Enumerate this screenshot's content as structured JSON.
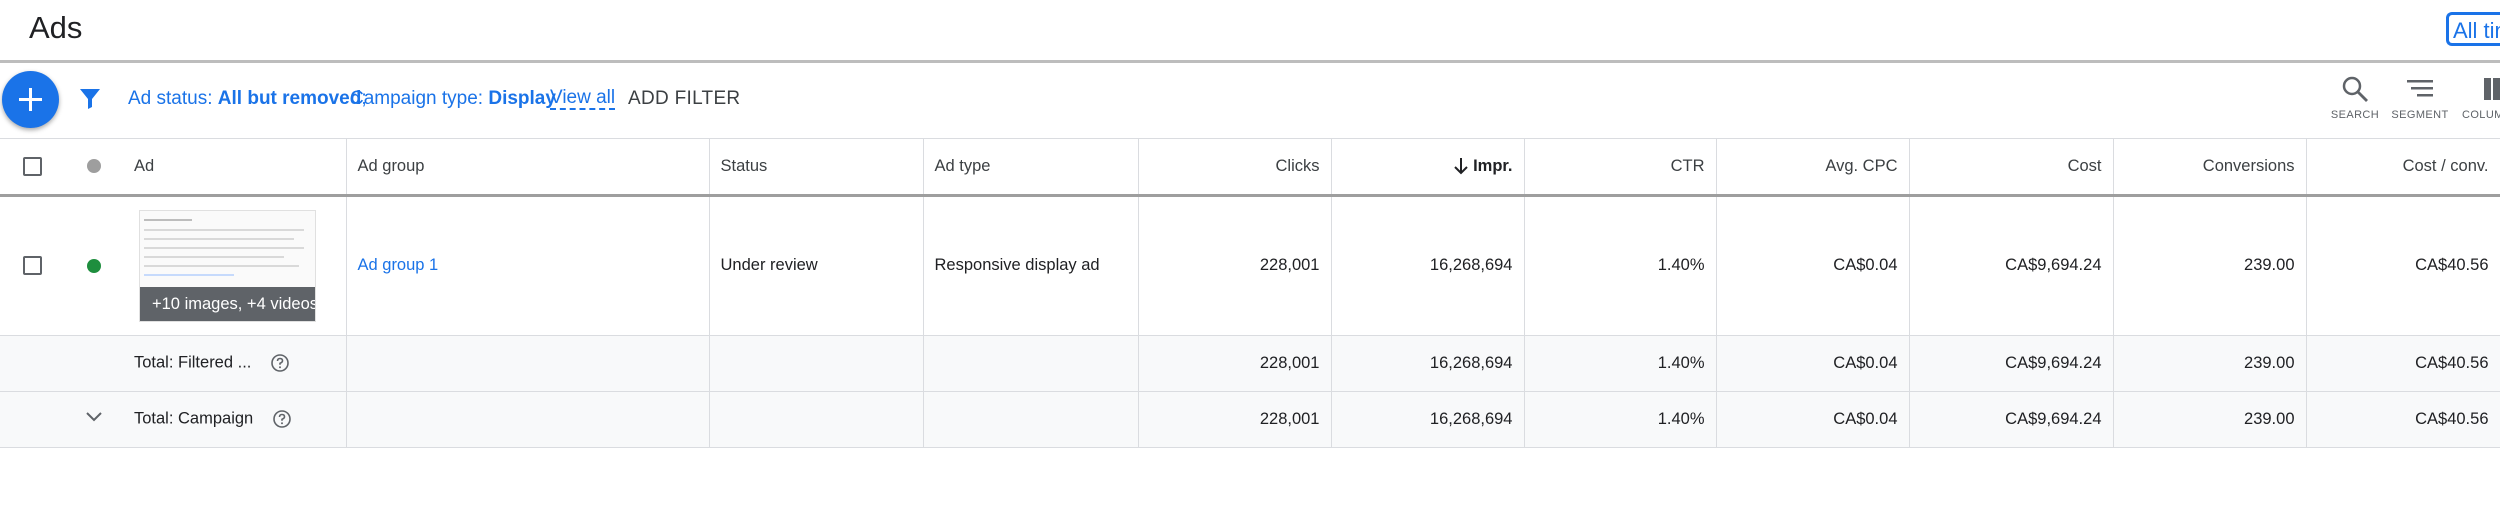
{
  "header": {
    "title": "Ads",
    "date_range": "All time"
  },
  "filterbar": {
    "status_label": "Ad status:",
    "status_value": "All but removed",
    "separator": ";",
    "campaign_label": "Campaign type:",
    "campaign_value": "Display",
    "view_all": "View all",
    "add_filter": "ADD FILTER"
  },
  "tools": [
    {
      "label": "SEARCH",
      "icon": "search-icon"
    },
    {
      "label": "SEGMENT",
      "icon": "segment-icon"
    },
    {
      "label": "COLUMNS",
      "icon": "columns-icon"
    }
  ],
  "columns": [
    "Ad",
    "Ad group",
    "Status",
    "Ad type",
    "Clicks",
    "Impr.",
    "CTR",
    "Avg. CPC",
    "Cost",
    "Conversions",
    "Cost / conv."
  ],
  "sort": {
    "column": "Impr.",
    "direction": "descending"
  },
  "rows": [
    {
      "status_color": "#1e8e3e",
      "ad_overlay": "+10 images, +4 videos",
      "ad_group": "Ad group 1",
      "status": "Under review",
      "ad_type": "Responsive display ad",
      "clicks": "228,001",
      "impr": "16,268,694",
      "ctr": "1.40%",
      "avg_cpc": "CA$0.04",
      "cost": "CA$9,694.24",
      "conversions": "239.00",
      "cost_conv": "CA$40.56"
    }
  ],
  "totals": [
    {
      "label": "Total: Filtered ...",
      "clicks": "228,001",
      "impr": "16,268,694",
      "ctr": "1.40%",
      "avg_cpc": "CA$0.04",
      "cost": "CA$9,694.24",
      "conversions": "239.00",
      "cost_conv": "CA$40.56"
    },
    {
      "label": "Total: Campaign",
      "clicks": "228,001",
      "impr": "16,268,694",
      "ctr": "1.40%",
      "avg_cpc": "CA$0.04",
      "cost": "CA$9,694.24",
      "conversions": "239.00",
      "cost_conv": "CA$40.56"
    }
  ],
  "colors": {
    "accent": "#1a73e8",
    "enabled": "#1e8e3e",
    "header_dot": "#9e9e9e"
  }
}
